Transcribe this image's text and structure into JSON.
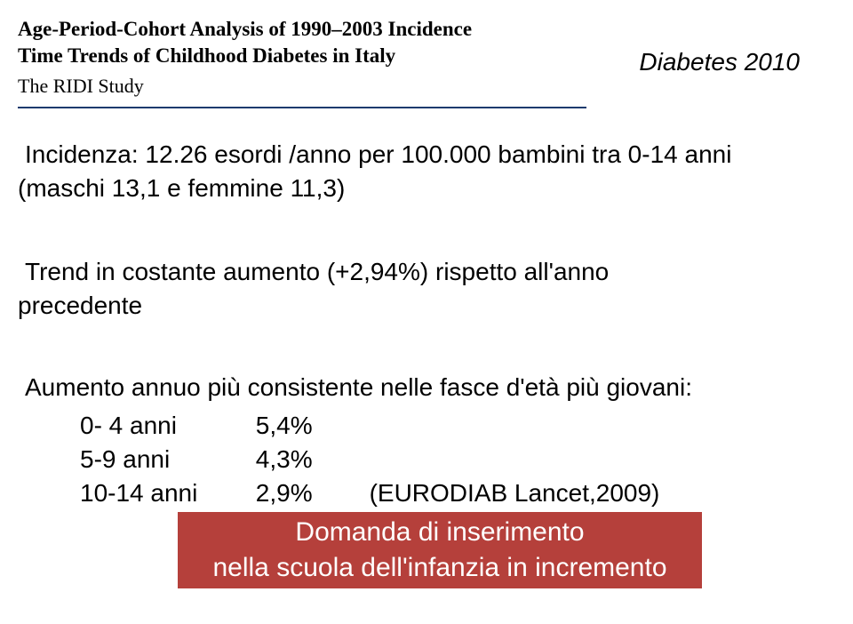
{
  "header": {
    "line1": "Age-Period-Cohort Analysis of 1990–2003 Incidence",
    "line2": "Time Trends of Childhood Diabetes in Italy",
    "line3": "The RIDI Study",
    "underline_color": "#1a3a6e"
  },
  "top_right": "Diabetes 2010",
  "incidence": {
    "text": "Incidenza: 12.26 esordi /anno per 100.000 bambini tra 0-14 anni",
    "sub": "(maschi 13,1 e femmine 11,3)"
  },
  "trend": {
    "line1": "Trend in costante aumento (+2,94%) rispetto all'anno",
    "line2": "precedente"
  },
  "aumento": {
    "heading": "Aumento annuo più consistente nelle fasce d'età più giovani:",
    "rows": [
      {
        "label": "0- 4 anni",
        "value": "5,4%",
        "note": ""
      },
      {
        "label": "5-9 anni",
        "value": "4,3%",
        "note": ""
      },
      {
        "label": "10-14 anni",
        "value": "2,9%",
        "note": "(EURODIAB Lancet,2009)"
      }
    ]
  },
  "red_band": {
    "line1": "Domanda di inserimento",
    "line2": "nella scuola dell'infanzia in incremento",
    "bg": "#b5403b",
    "fg": "#ffffff"
  },
  "colors": {
    "background": "#ffffff",
    "text": "#000000"
  },
  "typography": {
    "body_font": "Verdana",
    "header_font": "Georgia",
    "redband_font": "Arial",
    "body_fontsize_pt": 21,
    "header_fontsize_pt": 17,
    "redband_fontsize_pt": 22
  }
}
